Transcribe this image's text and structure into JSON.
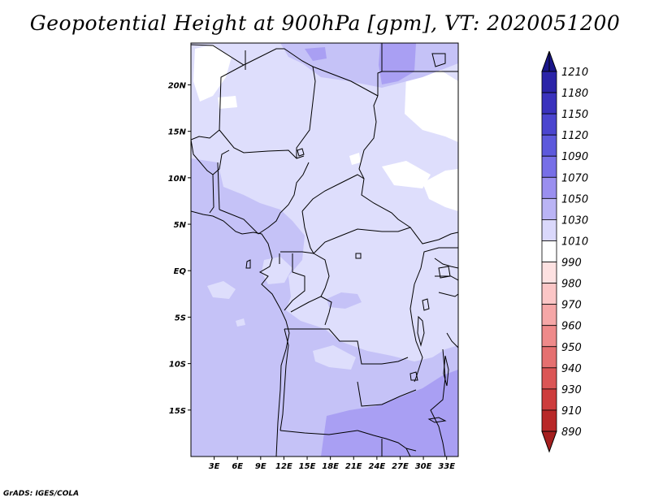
{
  "title": "Geopotential Height at 900hPa [gpm], VT: 2020051200",
  "credit": "GrADS: IGES/COLA",
  "map": {
    "lon_range": [
      0,
      34.5
    ],
    "lat_range": [
      -20,
      24.5
    ],
    "lon_ticks": [
      {
        "value": 3,
        "label": "3E"
      },
      {
        "value": 6,
        "label": "6E"
      },
      {
        "value": 9,
        "label": "9E"
      },
      {
        "value": 12,
        "label": "12E"
      },
      {
        "value": 15,
        "label": "15E"
      },
      {
        "value": 18,
        "label": "18E"
      },
      {
        "value": 21,
        "label": "21E"
      },
      {
        "value": 24,
        "label": "24E"
      },
      {
        "value": 27,
        "label": "27E"
      },
      {
        "value": 30,
        "label": "30E"
      },
      {
        "value": 33,
        "label": "33E"
      }
    ],
    "lat_ticks": [
      {
        "value": 20,
        "label": "20N"
      },
      {
        "value": 15,
        "label": "15N"
      },
      {
        "value": 10,
        "label": "10N"
      },
      {
        "value": 5,
        "label": "5N"
      },
      {
        "value": 0,
        "label": "EQ"
      },
      {
        "value": -5,
        "label": "5S"
      },
      {
        "value": -10,
        "label": "10S"
      },
      {
        "value": -15,
        "label": "15S"
      }
    ],
    "colors": {
      "lt1010": "#ffffff",
      "r1010_1030": "#dedefc",
      "r1030_1050": "#c5c2f7",
      "r1050_1070": "#a99ff3",
      "border": "#000000"
    }
  },
  "colorbar": {
    "levels": [
      {
        "label": "1210",
        "color": "#201c8c"
      },
      {
        "label": "1180",
        "color": "#2b24a8"
      },
      {
        "label": "1150",
        "color": "#3a32bd"
      },
      {
        "label": "1120",
        "color": "#4b45cf"
      },
      {
        "label": "1090",
        "color": "#5d59dc"
      },
      {
        "label": "1070",
        "color": "#776fe7"
      },
      {
        "label": "1050",
        "color": "#9a8fef"
      },
      {
        "label": "1030",
        "color": "#bab4f5"
      },
      {
        "label": "1010",
        "color": "#dad8fb"
      },
      {
        "label": "990",
        "color": "#ffffff"
      },
      {
        "label": "980",
        "color": "#fde1e1"
      },
      {
        "label": "970",
        "color": "#fbc6c6"
      },
      {
        "label": "960",
        "color": "#f5a7a7"
      },
      {
        "label": "950",
        "color": "#ee8a8a"
      },
      {
        "label": "940",
        "color": "#e57070"
      },
      {
        "label": "930",
        "color": "#db5656"
      },
      {
        "label": "910",
        "color": "#cd3c3c"
      },
      {
        "label": "890",
        "color": "#b82828"
      }
    ],
    "top_color": "#1a168a",
    "bottom_color": "#a51f1f"
  }
}
